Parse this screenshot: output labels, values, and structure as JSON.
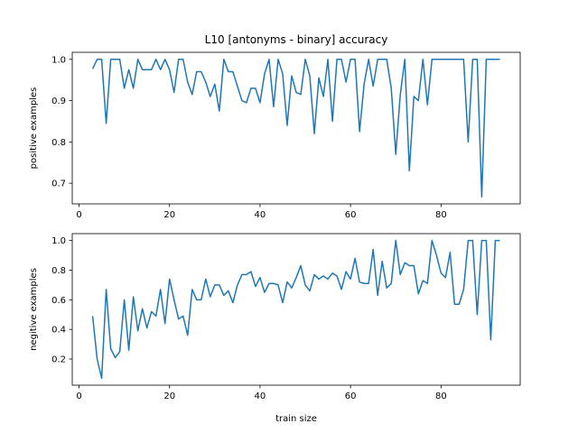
{
  "chart_data": [
    {
      "type": "line",
      "title": "L10 [antonyms - binary] accuracy",
      "y_label": "positive examples",
      "x": [
        3,
        4,
        5,
        6,
        7,
        8,
        9,
        10,
        11,
        12,
        13,
        14,
        15,
        16,
        17,
        18,
        19,
        20,
        21,
        22,
        23,
        24,
        25,
        26,
        27,
        28,
        29,
        30,
        31,
        32,
        33,
        34,
        35,
        36,
        37,
        38,
        39,
        40,
        41,
        42,
        43,
        44,
        45,
        46,
        47,
        48,
        49,
        50,
        51,
        52,
        53,
        54,
        55,
        56,
        57,
        58,
        59,
        60,
        61,
        62,
        63,
        64,
        65,
        66,
        67,
        68,
        69,
        70,
        71,
        72,
        73,
        74,
        75,
        76,
        77,
        78,
        79,
        80,
        81,
        82,
        83,
        84,
        85,
        86,
        87,
        88,
        89,
        90,
        91,
        92,
        93
      ],
      "series": [
        {
          "color": "#1f77b4",
          "values": [
            0.977,
            1,
            1,
            0.845,
            1,
            1,
            1,
            0.93,
            0.975,
            0.93,
            1,
            0.975,
            0.975,
            0.975,
            1,
            0.975,
            1,
            0.975,
            0.92,
            1,
            1,
            0.945,
            0.915,
            0.97,
            0.97,
            0.945,
            0.91,
            0.94,
            0.875,
            1,
            0.97,
            0.97,
            0.935,
            0.9,
            0.895,
            0.93,
            0.93,
            0.895,
            0.965,
            1,
            0.885,
            1,
            0.965,
            0.84,
            0.96,
            0.92,
            0.915,
            1,
            0.96,
            0.82,
            0.955,
            0.91,
            1,
            0.85,
            1,
            1,
            0.945,
            1,
            1,
            0.825,
            0.94,
            1,
            0.935,
            1,
            1,
            1,
            0.93,
            0.77,
            0.915,
            1,
            0.73,
            0.91,
            0.9,
            1,
            0.89,
            1,
            1,
            1,
            1,
            1,
            1,
            1,
            1,
            0.8,
            1,
            1,
            0.667,
            1,
            1,
            1,
            1
          ]
        }
      ],
      "xlim": [
        -1.5,
        97.5
      ],
      "xticks": [
        0,
        20,
        40,
        60,
        80
      ],
      "ylim": [
        0.65,
        1.017
      ],
      "yticks": [
        0.7,
        0.8,
        0.9,
        {
          "value": 1,
          "label": "1.0"
        }
      ]
    },
    {
      "type": "line",
      "x_label": "train size",
      "y_label": "negitive examples",
      "x": [
        3,
        4,
        5,
        6,
        7,
        8,
        9,
        10,
        11,
        12,
        13,
        14,
        15,
        16,
        17,
        18,
        19,
        20,
        21,
        22,
        23,
        24,
        25,
        26,
        27,
        28,
        29,
        30,
        31,
        32,
        33,
        34,
        35,
        36,
        37,
        38,
        39,
        40,
        41,
        42,
        43,
        44,
        45,
        46,
        47,
        48,
        49,
        50,
        51,
        52,
        53,
        54,
        55,
        56,
        57,
        58,
        59,
        60,
        61,
        62,
        63,
        64,
        65,
        66,
        67,
        68,
        69,
        70,
        71,
        72,
        73,
        74,
        75,
        76,
        77,
        78,
        79,
        80,
        81,
        82,
        83,
        84,
        85,
        86,
        87,
        88,
        89,
        90,
        91,
        92,
        93
      ],
      "series": [
        {
          "color": "#1f77b4",
          "values": [
            0.49,
            0.2,
            0.07,
            0.67,
            0.27,
            0.21,
            0.25,
            0.6,
            0.26,
            0.62,
            0.39,
            0.54,
            0.41,
            0.52,
            0.49,
            0.67,
            0.44,
            0.74,
            0.6,
            0.47,
            0.49,
            0.36,
            0.67,
            0.6,
            0.6,
            0.74,
            0.62,
            0.7,
            0.7,
            0.63,
            0.66,
            0.58,
            0.7,
            0.77,
            0.77,
            0.79,
            0.69,
            0.75,
            0.65,
            0.71,
            0.71,
            0.7,
            0.58,
            0.72,
            0.68,
            0.75,
            0.83,
            0.7,
            0.66,
            0.77,
            0.74,
            0.76,
            0.74,
            0.78,
            0.76,
            0.67,
            0.79,
            0.74,
            0.88,
            0.72,
            0.71,
            0.71,
            0.94,
            0.63,
            0.86,
            0.68,
            0.71,
            1,
            0.77,
            0.85,
            0.83,
            0.83,
            0.64,
            0.73,
            0.71,
            1,
            0.9,
            0.78,
            0.75,
            0.92,
            0.57,
            0.57,
            0.67,
            1,
            1,
            0.5,
            1,
            1,
            0.33,
            1,
            1
          ]
        }
      ],
      "xlim": [
        -1.5,
        97.5
      ],
      "xticks": [
        0,
        20,
        40,
        60,
        80
      ],
      "ylim": [
        0.0235,
        1.0465
      ],
      "yticks": [
        0.2,
        0.4,
        0.6,
        0.8,
        {
          "value": 1,
          "label": "1.0"
        }
      ]
    }
  ]
}
